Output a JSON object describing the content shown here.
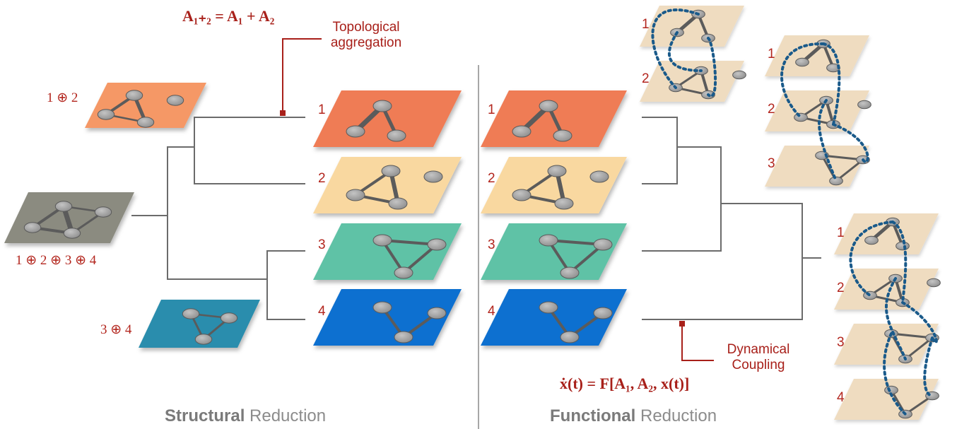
{
  "colors": {
    "layer1": "#ef7b55",
    "layer2": "#f9d8a0",
    "layer3": "#5fc2a6",
    "layer4": "#0e6fd0",
    "merged12": "#f59866",
    "merged34": "#2b8dad",
    "merged1234": "#8b8b80",
    "functional_layer": "#efdcc0",
    "accent": "#a8201a",
    "tree_line": "#6b6b6b",
    "coupling": "#1a5a8a",
    "node": "#9d9d9d"
  },
  "structural": {
    "formula": "A₁₊₂ = A₁ + A₂",
    "annotation": [
      "Topological",
      "aggregation"
    ],
    "merged_labels": {
      "m12": "1 ⊕ 2",
      "m1234": "1 ⊕ 2 ⊕ 3 ⊕ 4",
      "m34": "3 ⊕ 4"
    },
    "layer_labels": [
      "1",
      "2",
      "3",
      "4"
    ],
    "caption_bold": "Structural",
    "caption_rest": " Reduction"
  },
  "functional": {
    "formula": "ẋ(t) = F[A₁, A₂, x(t)]",
    "annotation": [
      "Dynamical",
      "Coupling"
    ],
    "layer_labels": [
      "1",
      "2",
      "3",
      "4"
    ],
    "stack12_labels": [
      "1",
      "2"
    ],
    "stack123_labels": [
      "1",
      "2",
      "3"
    ],
    "stack1234_labels": [
      "1",
      "2",
      "3",
      "4"
    ],
    "caption_bold": "Functional",
    "caption_rest": " Reduction"
  }
}
